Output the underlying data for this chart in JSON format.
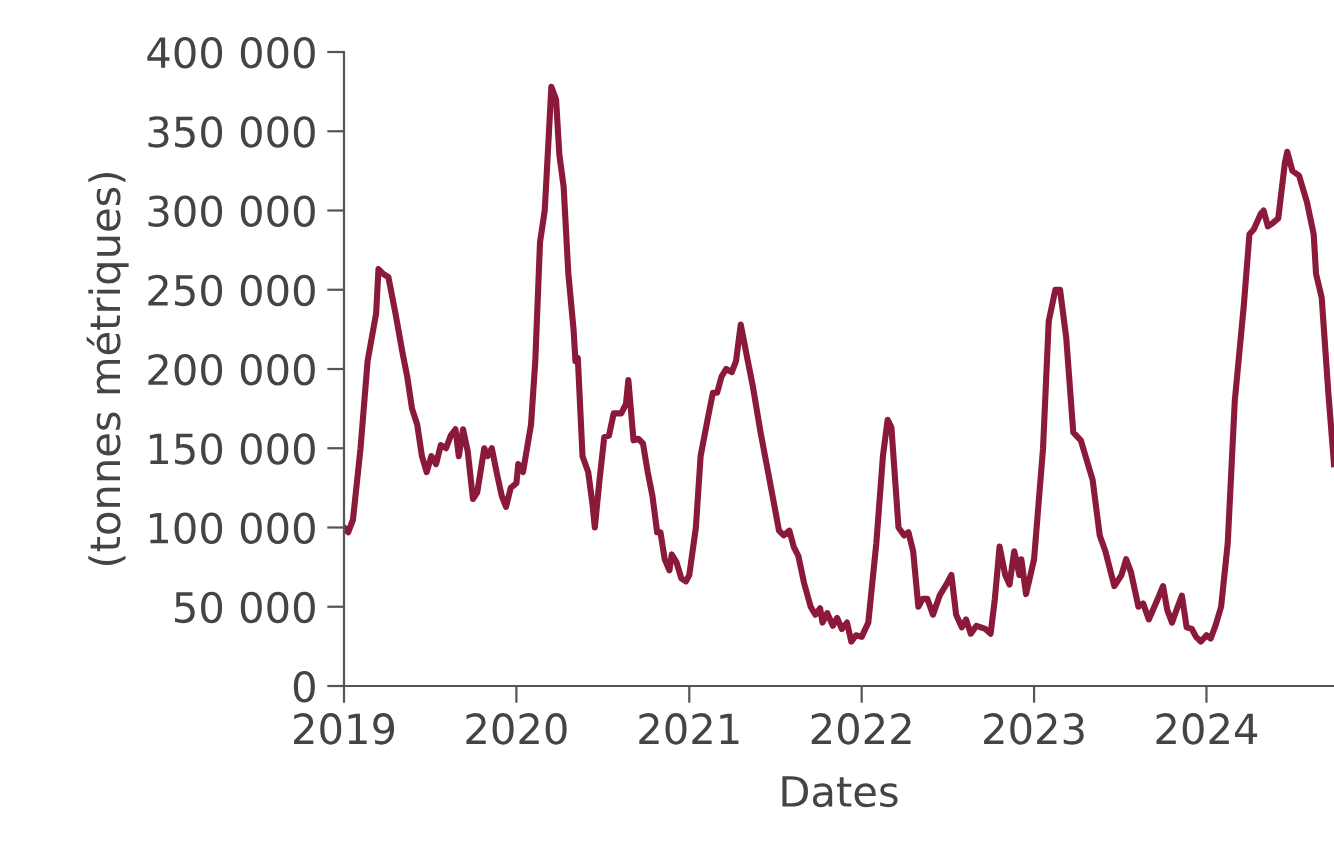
{
  "chart_data": {
    "type": "line",
    "xlabel": "Dates",
    "ylabel": "(tonnes métriques)",
    "xlim": [
      "2019-01-01",
      "2024-09-27"
    ],
    "xticks": [
      {
        "value": "2019-01-01",
        "label": "2019"
      },
      {
        "value": "2020-01-01",
        "label": "2020"
      },
      {
        "value": "2021-01-01",
        "label": "2021"
      },
      {
        "value": "2022-01-01",
        "label": "2022"
      },
      {
        "value": "2023-01-01",
        "label": "2023"
      },
      {
        "value": "2024-01-01",
        "label": "2024"
      }
    ],
    "ylim": [
      0,
      400000
    ],
    "yticks": [
      {
        "value": 0,
        "label": "0"
      },
      {
        "value": 50000,
        "label": "50 000"
      },
      {
        "value": 100000,
        "label": "100 000"
      },
      {
        "value": 150000,
        "label": "150 000"
      },
      {
        "value": 200000,
        "label": "200 000"
      },
      {
        "value": 250000,
        "label": "250 000"
      },
      {
        "value": 300000,
        "label": "300 000"
      },
      {
        "value": 350000,
        "label": "350 000"
      },
      {
        "value": 400000,
        "label": "400 000"
      }
    ],
    "grid": false,
    "legend": false,
    "marker": "none",
    "line_style": "solid",
    "x": [
      "2019-01-01",
      "2019-01-10",
      "2019-01-20",
      "2019-02-05",
      "2019-02-20",
      "2019-03-10",
      "2019-03-15",
      "2019-03-25",
      "2019-04-05",
      "2019-04-20",
      "2019-05-05",
      "2019-05-15",
      "2019-05-25",
      "2019-06-05",
      "2019-06-15",
      "2019-06-25",
      "2019-07-05",
      "2019-07-15",
      "2019-07-25",
      "2019-08-05",
      "2019-08-15",
      "2019-08-25",
      "2019-09-01",
      "2019-09-10",
      "2019-09-20",
      "2019-10-01",
      "2019-10-10",
      "2019-10-25",
      "2019-11-01",
      "2019-11-10",
      "2019-11-20",
      "2019-12-01",
      "2019-12-10",
      "2019-12-20",
      "2020-01-01",
      "2020-01-05",
      "2020-01-15",
      "2020-02-01",
      "2020-02-10",
      "2020-02-20",
      "2020-03-01",
      "2020-03-10",
      "2020-03-15",
      "2020-03-25",
      "2020-04-01",
      "2020-04-10",
      "2020-04-20",
      "2020-05-01",
      "2020-05-05",
      "2020-05-10",
      "2020-05-20",
      "2020-06-01",
      "2020-06-10",
      "2020-06-15",
      "2020-06-25",
      "2020-07-05",
      "2020-07-15",
      "2020-07-25",
      "2020-08-10",
      "2020-08-20",
      "2020-08-25",
      "2020-09-05",
      "2020-09-15",
      "2020-09-25",
      "2020-10-05",
      "2020-10-15",
      "2020-10-25",
      "2020-11-01",
      "2020-11-10",
      "2020-11-20",
      "2020-11-25",
      "2020-12-05",
      "2020-12-15",
      "2020-12-25",
      "2021-01-01",
      "2021-01-15",
      "2021-01-25",
      "2021-02-10",
      "2021-02-20",
      "2021-03-01",
      "2021-03-10",
      "2021-03-20",
      "2021-04-01",
      "2021-04-10",
      "2021-04-20",
      "2021-05-05",
      "2021-05-15",
      "2021-06-01",
      "2021-06-20",
      "2021-07-10",
      "2021-07-20",
      "2021-08-01",
      "2021-08-10",
      "2021-08-20",
      "2021-09-01",
      "2021-09-15",
      "2021-09-25",
      "2021-10-05",
      "2021-10-10",
      "2021-10-20",
      "2021-11-01",
      "2021-11-10",
      "2021-11-20",
      "2021-12-01",
      "2021-12-10",
      "2021-12-20",
      "2022-01-01",
      "2022-01-15",
      "2022-02-01",
      "2022-02-15",
      "2022-02-25",
      "2022-03-05",
      "2022-03-20",
      "2022-04-01",
      "2022-04-10",
      "2022-04-20",
      "2022-05-01",
      "2022-05-10",
      "2022-05-20",
      "2022-06-01",
      "2022-06-15",
      "2022-07-01",
      "2022-07-10",
      "2022-07-20",
      "2022-08-01",
      "2022-08-10",
      "2022-08-20",
      "2022-09-01",
      "2022-09-20",
      "2022-10-01",
      "2022-10-10",
      "2022-10-20",
      "2022-11-01",
      "2022-11-10",
      "2022-11-20",
      "2022-12-01",
      "2022-12-05",
      "2022-12-15",
      "2023-01-01",
      "2023-01-20",
      "2023-02-01",
      "2023-02-15",
      "2023-02-25",
      "2023-03-10",
      "2023-03-25",
      "2023-04-10",
      "2023-04-25",
      "2023-05-05",
      "2023-05-20",
      "2023-06-01",
      "2023-06-20",
      "2023-07-05",
      "2023-07-15",
      "2023-07-25",
      "2023-08-10",
      "2023-08-20",
      "2023-09-01",
      "2023-09-20",
      "2023-10-01",
      "2023-10-10",
      "2023-10-20",
      "2023-11-01",
      "2023-11-10",
      "2023-11-20",
      "2023-12-01",
      "2023-12-10",
      "2023-12-20",
      "2024-01-01",
      "2024-01-10",
      "2024-01-20",
      "2024-02-01",
      "2024-02-15",
      "2024-03-01",
      "2024-03-20",
      "2024-04-01",
      "2024-04-10",
      "2024-04-25",
      "2024-05-01",
      "2024-05-10",
      "2024-05-20",
      "2024-06-01",
      "2024-06-15",
      "2024-06-20",
      "2024-07-01",
      "2024-07-15",
      "2024-08-01",
      "2024-08-15",
      "2024-08-20",
      "2024-09-01",
      "2024-09-15",
      "2024-09-27"
    ],
    "series": [
      {
        "color": "#8b1a3a",
        "values": [
          100000,
          97000,
          105000,
          150000,
          205000,
          235000,
          263000,
          260000,
          258000,
          235000,
          210000,
          195000,
          175000,
          165000,
          145000,
          135000,
          145000,
          140000,
          152000,
          150000,
          158000,
          162000,
          145000,
          162000,
          148000,
          118000,
          122000,
          150000,
          145000,
          150000,
          135000,
          120000,
          113000,
          125000,
          128000,
          140000,
          135000,
          165000,
          205000,
          280000,
          300000,
          350000,
          378000,
          370000,
          335000,
          315000,
          260000,
          225000,
          205000,
          207000,
          145000,
          135000,
          115000,
          100000,
          130000,
          157000,
          158000,
          172000,
          172000,
          178000,
          193000,
          155000,
          156000,
          153000,
          135000,
          120000,
          97000,
          97000,
          80000,
          73000,
          83000,
          78000,
          68000,
          66000,
          70000,
          100000,
          145000,
          170000,
          185000,
          185000,
          195000,
          200000,
          198000,
          205000,
          228000,
          205000,
          190000,
          160000,
          130000,
          98000,
          95000,
          98000,
          88000,
          82000,
          65000,
          50000,
          45000,
          49000,
          40000,
          46000,
          38000,
          43000,
          36000,
          40000,
          28000,
          32000,
          31000,
          40000,
          90000,
          145000,
          168000,
          163000,
          100000,
          95000,
          97000,
          85000,
          50000,
          55000,
          55000,
          45000,
          57000,
          65000,
          70000,
          45000,
          37000,
          42000,
          33000,
          38000,
          36000,
          33000,
          55000,
          88000,
          70000,
          64000,
          85000,
          70000,
          80000,
          58000,
          80000,
          150000,
          230000,
          250000,
          250000,
          220000,
          160000,
          155000,
          140000,
          130000,
          95000,
          85000,
          63000,
          70000,
          80000,
          72000,
          50000,
          52000,
          42000,
          55000,
          63000,
          48000,
          40000,
          50000,
          57000,
          37000,
          36000,
          31000,
          28000,
          32000,
          30000,
          38000,
          50000,
          90000,
          180000,
          240000,
          285000,
          288000,
          298000,
          300000,
          290000,
          292000,
          295000,
          330000,
          337000,
          325000,
          322000,
          305000,
          285000,
          260000,
          245000,
          185000,
          140000
        ]
      }
    ]
  }
}
